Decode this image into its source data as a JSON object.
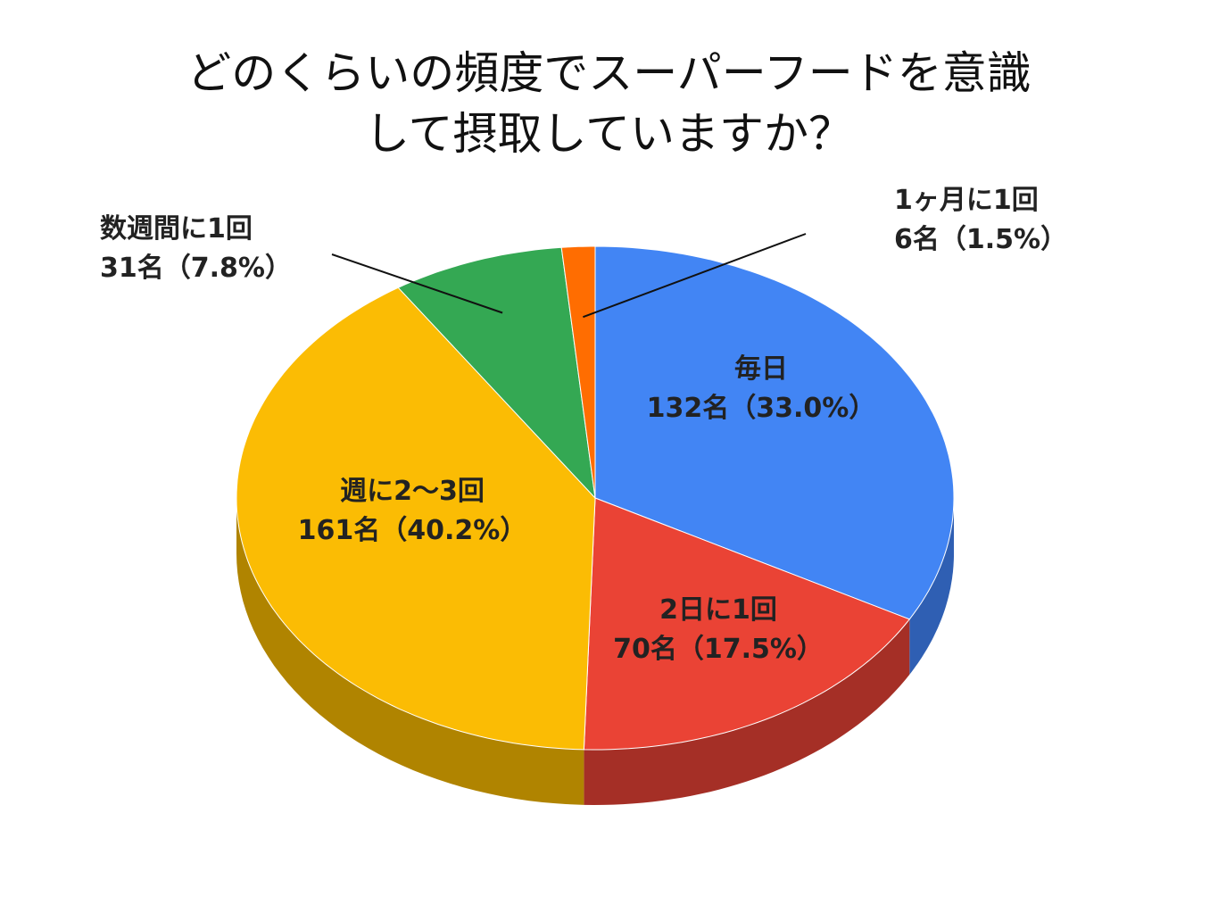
{
  "chart_data": {
    "type": "pie",
    "style": "3d",
    "title_lines": [
      "どのくらいの頻度でスーパーフードを意識",
      "して摂取していますか？"
    ],
    "slices": [
      {
        "label": "毎日",
        "value": 132,
        "value_label": "132名（33.0%）",
        "percent": 33.0,
        "color": "#4285F4",
        "side_color": "#2F5FB3"
      },
      {
        "label": "2日に1回",
        "value": 70,
        "value_label": "70名（17.5%）",
        "percent": 17.5,
        "color": "#EA4335",
        "side_color": "#A52F26"
      },
      {
        "label": "週に2〜3回",
        "value": 161,
        "value_label": "161名（40.2%）",
        "percent": 40.2,
        "color": "#FBBC04",
        "side_color": "#B08400"
      },
      {
        "label": "数週間に1回",
        "value": 31,
        "value_label": "31名（7.8%）",
        "percent": 7.8,
        "color": "#34A853",
        "side_color": "#247638"
      },
      {
        "label": "1ヶ月に1回",
        "value": 6,
        "value_label": "6名（1.5%）",
        "percent": 1.5,
        "color": "#FF6D01",
        "side_color": "#B34C00"
      }
    ]
  }
}
